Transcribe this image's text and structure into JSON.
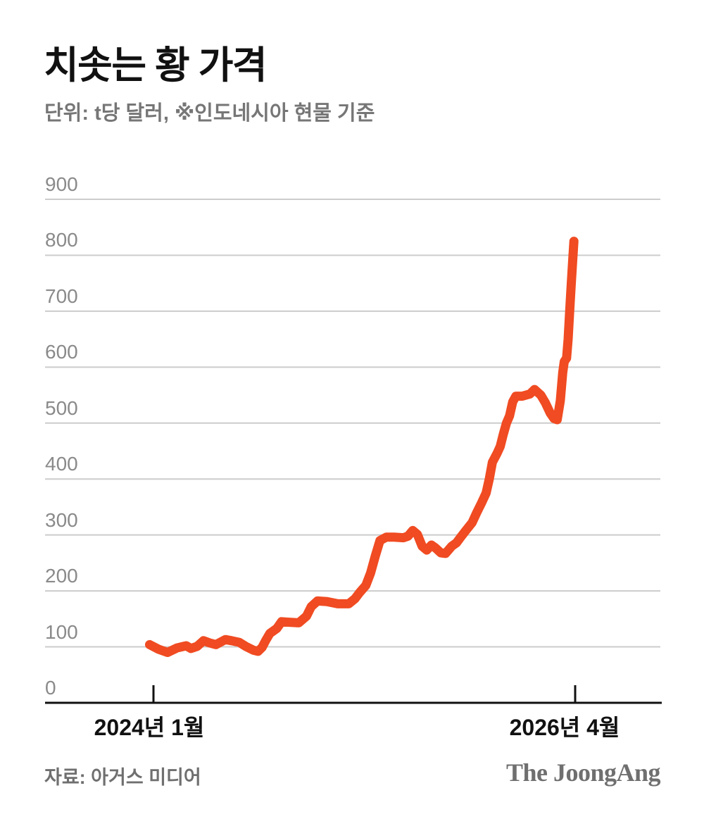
{
  "header": {
    "title": "치솟는 황 가격",
    "subtitle": "단위: t당 달러, ※인도네시아 현물 기준"
  },
  "footer": {
    "source": "자료: 아거스 미디어",
    "brand": "The JoongAng"
  },
  "chart_data": {
    "type": "line",
    "title": "치솟는 황 가격",
    "unit_note": "단위: t당 달러, ※인도네시아 현물 기준",
    "source": "아거스 미디어",
    "legend": "none",
    "grid": "horizontal gridlines only",
    "colors": {
      "line": "#f04b22",
      "grid": "#cccccc",
      "axis": "#111111",
      "ytick_text": "#8a8a8a",
      "xtick_text": "#111111"
    },
    "ylim": [
      0,
      900
    ],
    "yticks": [
      0,
      100,
      200,
      300,
      400,
      500,
      600,
      700,
      800,
      900
    ],
    "x_unit": "months since 2024-01 (0 = first tick)",
    "xticks": [
      {
        "month": 0,
        "label": "2024년 1월"
      },
      {
        "month": 27,
        "label": "2026년 4월"
      }
    ],
    "series": [
      {
        "name": "황 가격 (인도네시아 현물, t당 달러)",
        "points": [
          [
            -0.25,
            104
          ],
          [
            0.3,
            96
          ],
          [
            0.9,
            90
          ],
          [
            1.5,
            98
          ],
          [
            2.1,
            102
          ],
          [
            2.4,
            97
          ],
          [
            2.8,
            101
          ],
          [
            3.2,
            111
          ],
          [
            3.6,
            107
          ],
          [
            4.0,
            104
          ],
          [
            4.6,
            113
          ],
          [
            5.0,
            111
          ],
          [
            5.5,
            108
          ],
          [
            5.9,
            101
          ],
          [
            6.4,
            94
          ],
          [
            6.7,
            92
          ],
          [
            6.95,
            99
          ],
          [
            7.2,
            112
          ],
          [
            7.45,
            124
          ],
          [
            7.9,
            133
          ],
          [
            8.2,
            145
          ],
          [
            8.7,
            144
          ],
          [
            9.3,
            143
          ],
          [
            9.8,
            155
          ],
          [
            10.1,
            172
          ],
          [
            10.5,
            182
          ],
          [
            11.1,
            181
          ],
          [
            11.8,
            177
          ],
          [
            12.5,
            177
          ],
          [
            12.9,
            186
          ],
          [
            13.2,
            197
          ],
          [
            13.6,
            210
          ],
          [
            13.9,
            232
          ],
          [
            14.2,
            262
          ],
          [
            14.5,
            290
          ],
          [
            14.9,
            296
          ],
          [
            15.4,
            296
          ],
          [
            16.0,
            295
          ],
          [
            16.3,
            298
          ],
          [
            16.6,
            308
          ],
          [
            16.9,
            301
          ],
          [
            17.2,
            280
          ],
          [
            17.5,
            273
          ],
          [
            17.8,
            282
          ],
          [
            18.05,
            277
          ],
          [
            18.4,
            268
          ],
          [
            18.7,
            267
          ],
          [
            19.1,
            280
          ],
          [
            19.4,
            286
          ],
          [
            19.7,
            297
          ],
          [
            20.0,
            308
          ],
          [
            20.4,
            322
          ],
          [
            20.7,
            340
          ],
          [
            21.0,
            357
          ],
          [
            21.3,
            375
          ],
          [
            21.5,
            400
          ],
          [
            21.7,
            430
          ],
          [
            22.0,
            446
          ],
          [
            22.2,
            458
          ],
          [
            22.4,
            480
          ],
          [
            22.6,
            500
          ],
          [
            22.8,
            513
          ],
          [
            23.0,
            538
          ],
          [
            23.2,
            548
          ],
          [
            23.6,
            548
          ],
          [
            24.1,
            552
          ],
          [
            24.4,
            560
          ],
          [
            24.8,
            550
          ],
          [
            25.1,
            536
          ],
          [
            25.4,
            518
          ],
          [
            25.65,
            508
          ],
          [
            25.85,
            506
          ],
          [
            26.05,
            540
          ],
          [
            26.2,
            590
          ],
          [
            26.3,
            610
          ],
          [
            26.45,
            616
          ],
          [
            26.55,
            650
          ],
          [
            26.65,
            700
          ],
          [
            26.75,
            750
          ],
          [
            26.85,
            795
          ],
          [
            26.92,
            825
          ]
        ]
      }
    ]
  }
}
